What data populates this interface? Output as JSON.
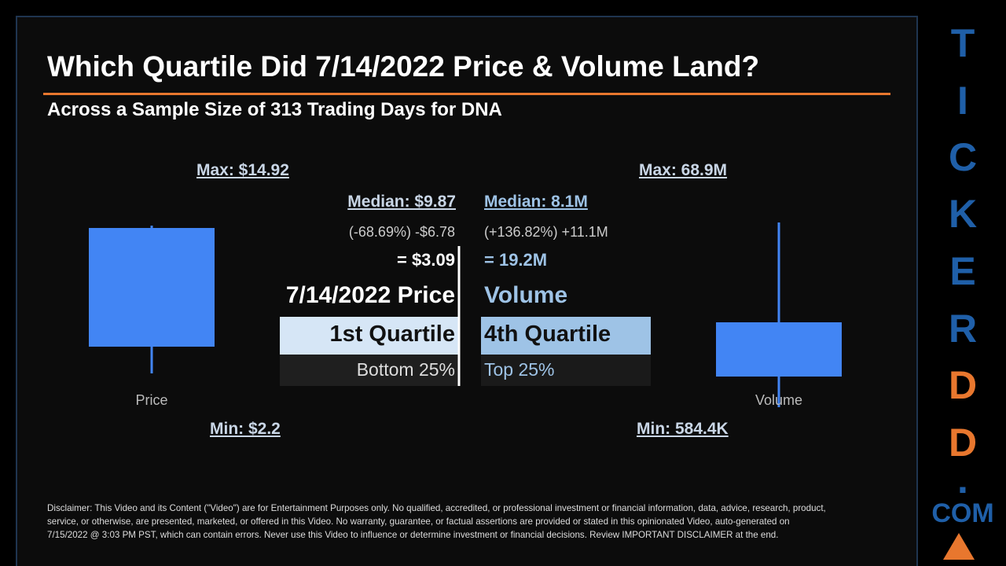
{
  "header": {
    "title": "Which Quartile Did 7/14/2022 Price & Volume Land?",
    "subtitle": "Across a Sample Size of 313 Trading Days for DNA"
  },
  "price": {
    "max": "Max: $14.92",
    "median": "Median: $9.87",
    "change": "(-68.69%) -$6.78",
    "result": "= $3.09",
    "label": "7/14/2022 Price",
    "quartile": "1st Quartile",
    "range": "Bottom 25%",
    "axis": "Price",
    "min": "Min: $2.2"
  },
  "volume": {
    "max": "Max: 68.9M",
    "median": "Median: 8.1M",
    "change": "(+136.82%) +11.1M",
    "result": "= 19.2M",
    "label": "Volume",
    "quartile": "4th Quartile",
    "range": "Top 25%",
    "axis": "Volume",
    "min": "Min: 584.4K"
  },
  "brand": {
    "letters": [
      "T",
      "I",
      "C",
      "K",
      "E",
      "R",
      "D",
      "D",
      ".",
      "COM"
    ]
  },
  "disclaimer": {
    "lines": [
      "Disclaimer: This Video and its Content (\"Video\") are for Entertainment Purposes only. No qualified, accredited, or professional investment or financial information, data, advice, research, product,",
      "service, or otherwise, are presented, marketed, or offered in this Video. No warranty, guarantee, or factual assertions are provided or stated in this opinionated Video, auto-generated on",
      "7/15/2022 @ 3:03 PM PST, which can contain errors. Never use this Video to influence or determine investment or financial decisions. Review IMPORTANT DISCLAIMER at the end."
    ]
  }
}
